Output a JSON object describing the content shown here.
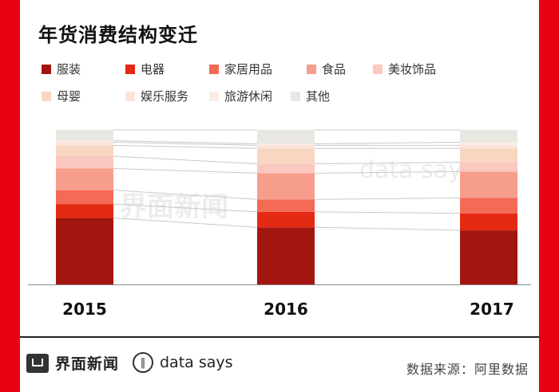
{
  "title": "年货消费结构变迁",
  "footer": {
    "brand": "界面新闻",
    "sub_brand": "data says",
    "source": "数据来源：阿里数据"
  },
  "watermark": {
    "brand": "界面新闻",
    "sub_brand": "data says"
  },
  "colors": {
    "band": "#e60012",
    "axis": "#888888",
    "connector": "#c8c8c8"
  },
  "chart_data": {
    "type": "bar",
    "stacked": true,
    "title": "年货消费结构变迁",
    "categories": [
      "2015",
      "2016",
      "2017"
    ],
    "ylim": [
      0,
      100
    ],
    "grid": false,
    "legend_position": "top-left",
    "series": [
      {
        "name": "服装",
        "color": "#a31610",
        "values": [
          43,
          37,
          35
        ]
      },
      {
        "name": "电器",
        "color": "#e42a12",
        "values": [
          9,
          10,
          11
        ]
      },
      {
        "name": "家居用品",
        "color": "#f36a55",
        "values": [
          9,
          8,
          10
        ]
      },
      {
        "name": "食品",
        "color": "#f79d8b",
        "values": [
          14,
          17,
          17
        ]
      },
      {
        "name": "美妆饰品",
        "color": "#fbc8c0",
        "values": [
          8,
          6,
          6
        ]
      },
      {
        "name": "母婴",
        "color": "#f8d6c1",
        "values": [
          7,
          10,
          9
        ]
      },
      {
        "name": "娱乐服务",
        "color": "#fde4da",
        "values": [
          2,
          2,
          2
        ]
      },
      {
        "name": "旅游休闲",
        "color": "#fcece6",
        "values": [
          1,
          1,
          2
        ]
      },
      {
        "name": "其他",
        "color": "#e9e7e2",
        "values": [
          7,
          9,
          8
        ]
      }
    ]
  }
}
